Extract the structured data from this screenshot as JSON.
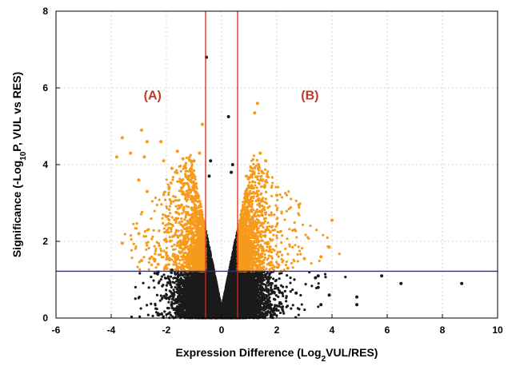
{
  "chart_data": {
    "type": "scatter",
    "title": "",
    "xlabel": {
      "prefix": "Expression Difference (Log",
      "sub": "2",
      "suffix": "VUL/RES)"
    },
    "ylabel": {
      "prefix": "Significance (-Log",
      "sub": "10",
      "suffix": "P, VUL vs RES)"
    },
    "xlim": [
      -6,
      10
    ],
    "ylim": [
      0,
      8
    ],
    "x_ticks": [
      -6,
      -4,
      -2,
      0,
      2,
      4,
      6,
      8,
      10
    ],
    "y_ticks": [
      0,
      2,
      4,
      6,
      8
    ],
    "x_tick_labels": [
      "-6",
      "-4",
      "-2",
      "0",
      "2",
      "4",
      "6",
      "8",
      "10"
    ],
    "y_tick_labels": [
      "0",
      "2",
      "4",
      "6",
      "8"
    ],
    "grid": true,
    "legend": "none",
    "colors": {
      "significant": "#f59a1b",
      "non_significant": "#1a1a1a",
      "fold_threshold_line": "#d62a1e",
      "pvalue_threshold_line": "#1f2bd1",
      "region_label": "#c0392b",
      "grid": "#d4d4d4"
    },
    "thresholds": {
      "log2_fold_change": [
        -0.58,
        0.58
      ],
      "neg_log10_p": 1.22
    },
    "region_labels": [
      {
        "text": "(A)",
        "x": -2.5,
        "y": 5.7
      },
      {
        "text": "(B)",
        "x": 3.2,
        "y": 5.7
      }
    ],
    "highlighted_points": {
      "significant": [
        [
          -3.8,
          4.2
        ],
        [
          -3.6,
          4.7
        ],
        [
          -2.9,
          4.9
        ],
        [
          -2.7,
          4.6
        ],
        [
          -2.8,
          4.2
        ],
        [
          -3.3,
          4.3
        ],
        [
          -2.2,
          4.6
        ],
        [
          -2.1,
          4.1
        ],
        [
          -1.6,
          4.35
        ],
        [
          -1.4,
          4.15
        ],
        [
          -1.0,
          4.1
        ],
        [
          -3.6,
          1.95
        ],
        [
          -2.9,
          1.5
        ],
        [
          -2.6,
          1.55
        ],
        [
          -3.0,
          2.2
        ],
        [
          -2.7,
          3.3
        ],
        [
          -3.0,
          3.6
        ],
        [
          -2.3,
          1.4
        ],
        [
          -2.0,
          2.0
        ],
        [
          -1.8,
          3.9
        ],
        [
          -1.9,
          3.4
        ],
        [
          -0.7,
          5.05
        ],
        [
          -0.8,
          4.3
        ],
        [
          0.9,
          3.7
        ],
        [
          1.3,
          5.6
        ],
        [
          1.2,
          5.35
        ],
        [
          1.6,
          4.1
        ],
        [
          1.4,
          4.3
        ],
        [
          2.0,
          3.2
        ],
        [
          2.8,
          2.95
        ],
        [
          3.0,
          1.55
        ],
        [
          3.6,
          1.6
        ],
        [
          3.9,
          1.85
        ],
        [
          4.0,
          2.55
        ],
        [
          2.4,
          1.3
        ],
        [
          1.8,
          1.45
        ],
        [
          -1.5,
          1.7
        ],
        [
          -1.2,
          2.5
        ]
      ],
      "non_significant": [
        [
          -0.55,
          6.8
        ],
        [
          0.25,
          5.25
        ],
        [
          -2.3,
          1.2
        ],
        [
          -1.8,
          1.25
        ],
        [
          3.5,
          1.1
        ],
        [
          3.4,
          1.05
        ],
        [
          3.5,
          0.8
        ],
        [
          4.9,
          0.55
        ],
        [
          4.9,
          0.35
        ],
        [
          5.8,
          1.1
        ],
        [
          6.5,
          0.9
        ],
        [
          8.7,
          0.9
        ],
        [
          3.9,
          0.6
        ],
        [
          3.6,
          0.35
        ],
        [
          2.7,
          0.65
        ],
        [
          -0.4,
          4.1
        ],
        [
          0.4,
          4.0
        ],
        [
          0.35,
          3.8
        ],
        [
          -0.45,
          3.7
        ]
      ]
    },
    "distribution_model": {
      "n_core": 22000,
      "x_sigma": 0.62,
      "p_decay": 1.05,
      "description": "approximate dense volcano cloud of non-significant points"
    }
  }
}
